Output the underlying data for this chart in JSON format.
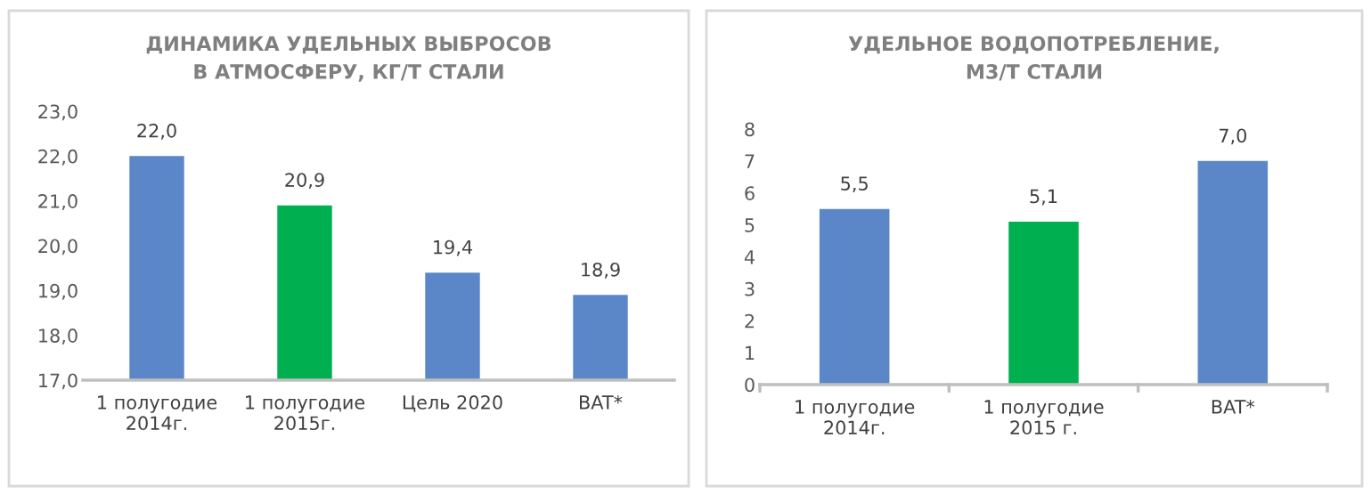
{
  "chart_data": [
    {
      "type": "bar",
      "title": "ДИНАМИКА УДЕЛЬНЫХ ВЫБРОСОВ\nВ АТМОСФЕРУ, КГ/Т СТАЛИ",
      "categories": [
        "1 полугодие\n2014г.",
        "1 полугодие\n2015г.",
        "Цель 2020",
        "BAT*"
      ],
      "values": [
        22.0,
        20.9,
        19.4,
        18.9
      ],
      "colors": [
        "#5b87c8",
        "#00b050",
        "#5b87c8",
        "#5b87c8"
      ],
      "value_labels": [
        "22,0",
        "20,9",
        "19,4",
        "18,9"
      ],
      "ylim": [
        17,
        23
      ],
      "yticks": [
        {
          "value": 17,
          "label": "17,0"
        },
        {
          "value": 18,
          "label": "18,0"
        },
        {
          "value": 19,
          "label": "19,0"
        },
        {
          "value": 20,
          "label": "20,0"
        },
        {
          "value": 21,
          "label": "21,0"
        },
        {
          "value": 22,
          "label": "22,0"
        },
        {
          "value": 23,
          "label": "23,0"
        }
      ],
      "grid": false
    },
    {
      "type": "bar",
      "title": "УДЕЛЬНОЕ ВОДОПОТРЕБЛЕНИЕ,\nМ3/Т СТАЛИ",
      "categories": [
        "1 полугодие\n2014г.",
        "1 полугодие\n2015 г.",
        "BAT*"
      ],
      "values": [
        5.5,
        5.1,
        7.0
      ],
      "colors": [
        "#5b87c8",
        "#00b050",
        "#5b87c8"
      ],
      "value_labels": [
        "5,5",
        "5,1",
        "7,0"
      ],
      "ylim": [
        0,
        8
      ],
      "yticks": [
        0,
        1,
        2,
        3,
        4,
        5,
        6,
        7,
        8
      ],
      "grid": false
    }
  ]
}
